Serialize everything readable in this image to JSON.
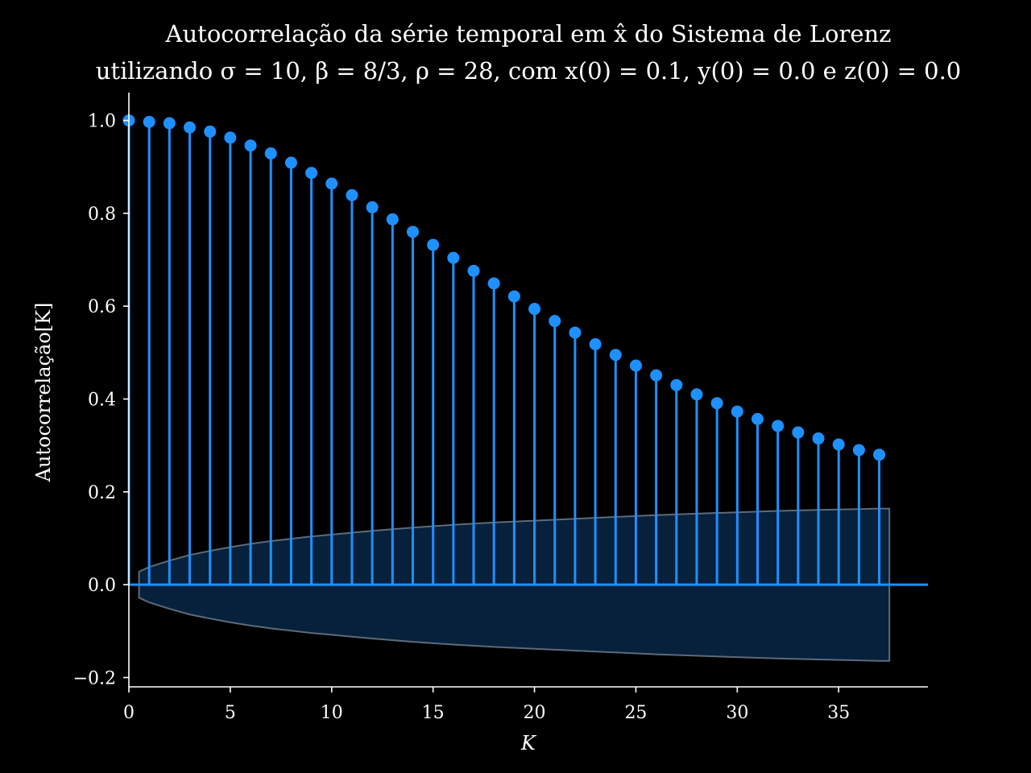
{
  "chart_data": {
    "type": "stem",
    "title_line1": "Autocorrelação da série temporal em x̂ do Sistema de Lorenz",
    "title_line2": "utilizando σ = 10, β = 8/3, ρ = 28, com x(0) = 0.1, y(0) = 0.0 e z(0) = 0.0",
    "xlabel": "K",
    "ylabel": "Autocorrelação[K]",
    "xlim": [
      0,
      39.4
    ],
    "ylim": [
      -0.22,
      1.06
    ],
    "xticks": [
      0,
      5,
      10,
      15,
      20,
      25,
      30,
      35
    ],
    "yticks": [
      -0.2,
      0.0,
      0.2,
      0.4,
      0.6,
      0.8,
      1.0
    ],
    "ytick_labels": [
      "−0.2",
      "0.0",
      "0.2",
      "0.4",
      "0.6",
      "0.8",
      "1.0"
    ],
    "grid": false,
    "lags": [
      0,
      1,
      2,
      3,
      4,
      5,
      6,
      7,
      8,
      9,
      10,
      11,
      12,
      13,
      14,
      15,
      16,
      17,
      18,
      19,
      20,
      21,
      22,
      23,
      24,
      25,
      26,
      27,
      28,
      29,
      30,
      31,
      32,
      33,
      34,
      35,
      36,
      37
    ],
    "values": [
      1.0,
      0.997,
      0.994,
      0.985,
      0.976,
      0.963,
      0.946,
      0.929,
      0.909,
      0.887,
      0.864,
      0.839,
      0.813,
      0.787,
      0.76,
      0.732,
      0.704,
      0.676,
      0.649,
      0.621,
      0.594,
      0.568,
      0.543,
      0.518,
      0.495,
      0.472,
      0.451,
      0.43,
      0.41,
      0.391,
      0.373,
      0.357,
      0.342,
      0.328,
      0.315,
      0.302,
      0.29,
      0.28
    ],
    "confidence_band": {
      "x": [
        0.5,
        1,
        2,
        3,
        4,
        5,
        6,
        7,
        8,
        9,
        10,
        12,
        14,
        16,
        18,
        20,
        22,
        24,
        26,
        28,
        30,
        32,
        34,
        36,
        37,
        37.5
      ],
      "upper": [
        0.028,
        0.038,
        0.052,
        0.064,
        0.073,
        0.081,
        0.088,
        0.094,
        0.099,
        0.104,
        0.108,
        0.116,
        0.123,
        0.129,
        0.134,
        0.138,
        0.142,
        0.146,
        0.15,
        0.153,
        0.156,
        0.159,
        0.161,
        0.163,
        0.164,
        0.164
      ]
    },
    "colors": {
      "background": "#000000",
      "stem": "#1e90ff",
      "baseline": "#1e90ff",
      "band_fill": "#07233f",
      "band_edge": "#5d6a7a",
      "axes": "#ffffff",
      "text": "#ffffff"
    }
  }
}
